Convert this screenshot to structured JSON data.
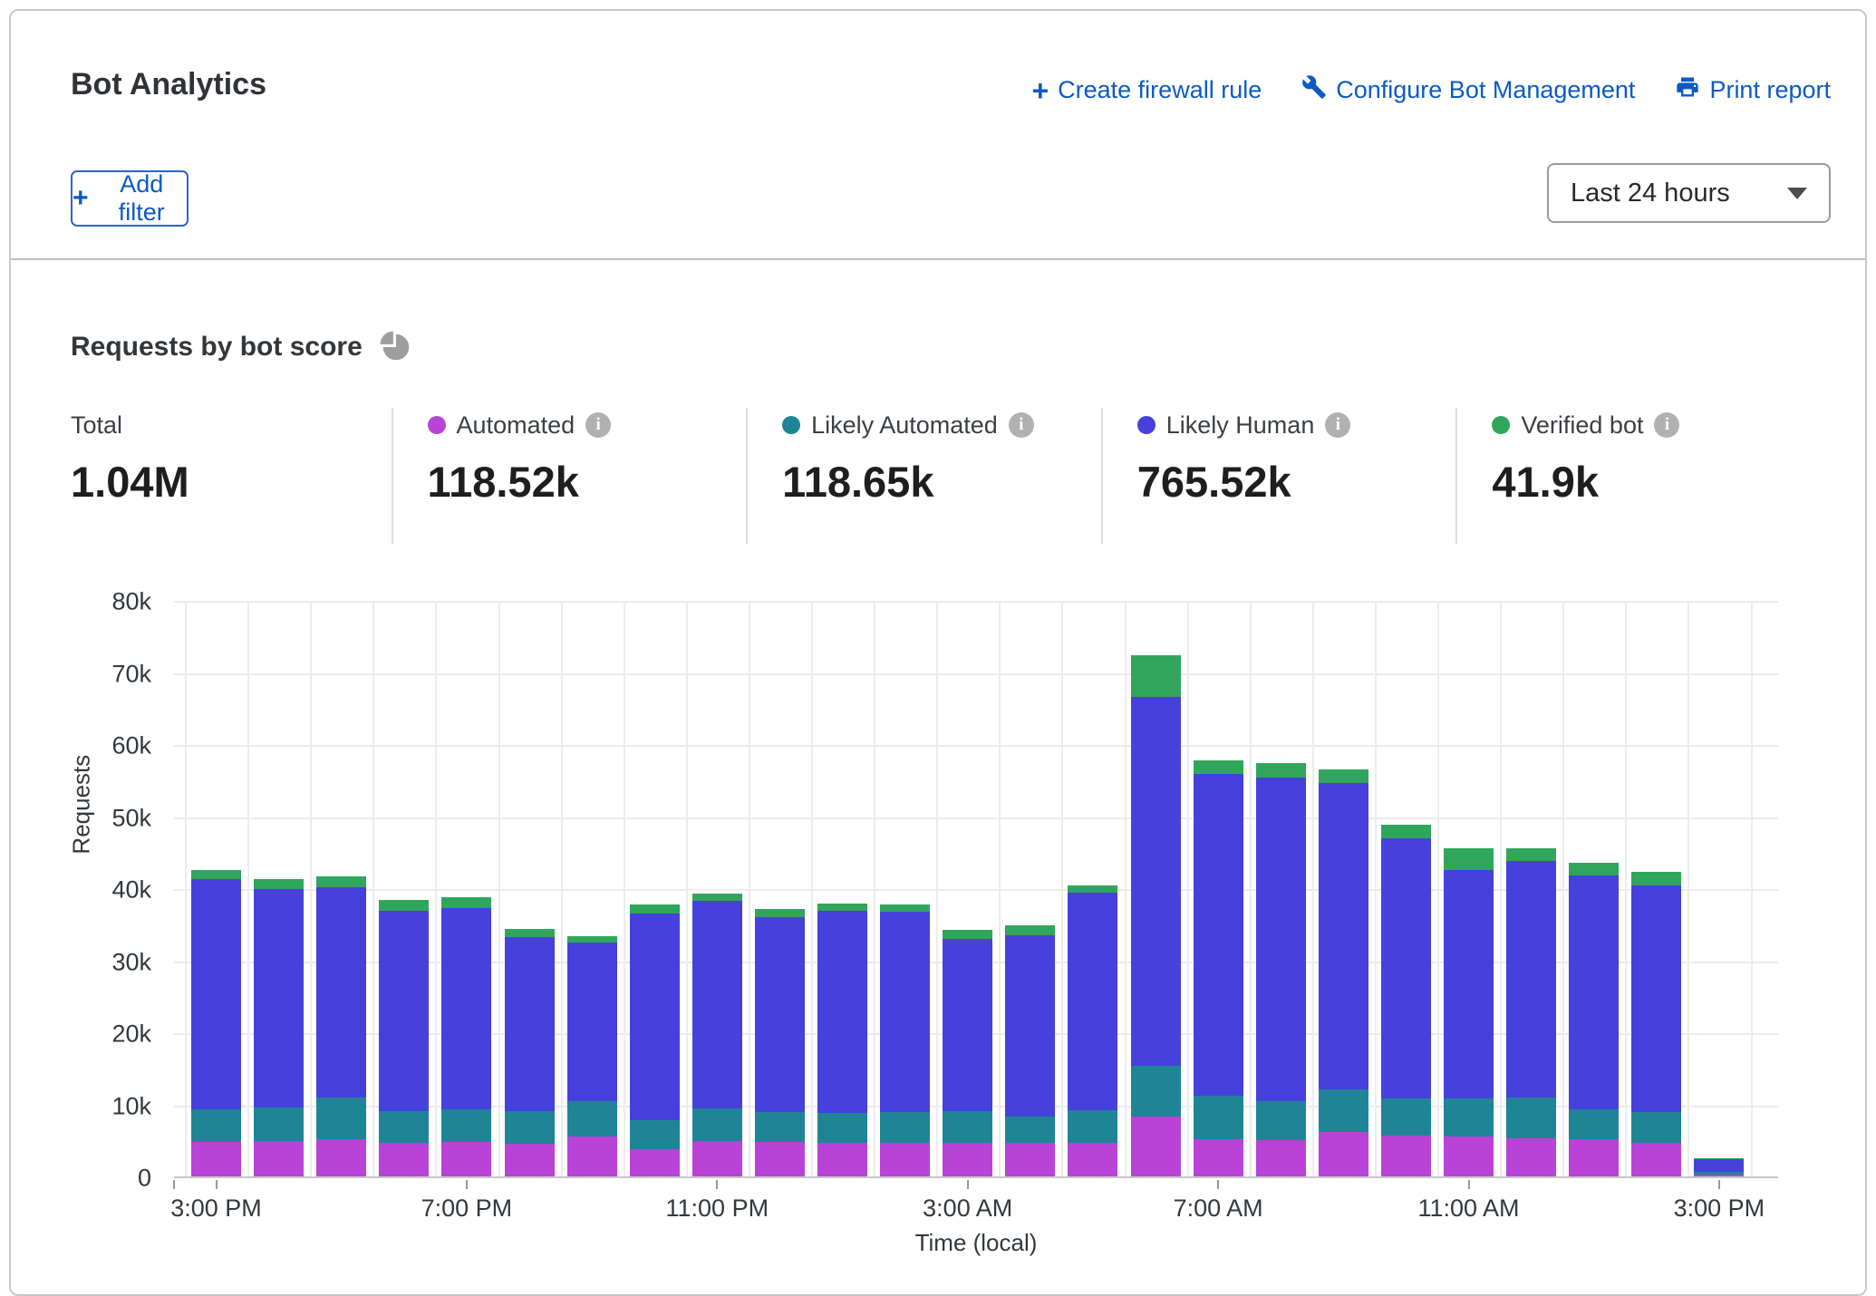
{
  "header": {
    "title": "Bot Analytics",
    "actions": [
      {
        "label": "Create firewall rule",
        "icon": "plus-icon"
      },
      {
        "label": "Configure Bot Management",
        "icon": "wrench-icon"
      },
      {
        "label": "Print report",
        "icon": "printer-icon"
      }
    ],
    "add_filter_label": "Add filter",
    "time_range_value": "Last 24 hours"
  },
  "section": {
    "title": "Requests by bot score"
  },
  "stats": {
    "total": {
      "label": "Total",
      "value": "1.04M"
    },
    "legend": [
      {
        "label": "Automated",
        "value": "118.52k",
        "color": "#b843d6"
      },
      {
        "label": "Likely Automated",
        "value": "118.65k",
        "color": "#1f8496"
      },
      {
        "label": "Likely Human",
        "value": "765.52k",
        "color": "#4640dc"
      },
      {
        "label": "Verified bot",
        "value": "41.9k",
        "color": "#2fa65c"
      }
    ]
  },
  "chart_data": {
    "type": "bar",
    "stacked": true,
    "title": "Requests by bot score",
    "xlabel": "Time (local)",
    "ylabel": "Requests",
    "ylim": [
      0,
      80000
    ],
    "grid": true,
    "y_tick_labels": [
      "0",
      "10k",
      "20k",
      "30k",
      "40k",
      "50k",
      "60k",
      "70k",
      "80k"
    ],
    "x_tick_labels": [
      "3:00 PM",
      "7:00 PM",
      "11:00 PM",
      "3:00 AM",
      "7:00 AM",
      "11:00 AM",
      "3:00 PM"
    ],
    "x_tick_every": 4,
    "categories": [
      "3:00 PM",
      "4:00 PM",
      "5:00 PM",
      "6:00 PM",
      "7:00 PM",
      "8:00 PM",
      "9:00 PM",
      "10:00 PM",
      "11:00 PM",
      "12:00 AM",
      "1:00 AM",
      "2:00 AM",
      "3:00 AM",
      "4:00 AM",
      "5:00 AM",
      "6:00 AM",
      "7:00 AM",
      "8:00 AM",
      "9:00 AM",
      "10:00 AM",
      "11:00 AM",
      "12:00 PM",
      "1:00 PM",
      "2:00 PM",
      "3:00 PM"
    ],
    "series": [
      {
        "name": "Automated",
        "color": "#b843d6",
        "values": [
          4800,
          4900,
          5200,
          4600,
          4800,
          4500,
          5500,
          3800,
          4900,
          4800,
          4600,
          4700,
          4600,
          4600,
          4700,
          8300,
          5100,
          5000,
          6200,
          5600,
          5500,
          5300,
          5200,
          4600,
          300
        ]
      },
      {
        "name": "Likely Automated",
        "color": "#1f8496",
        "values": [
          4500,
          4600,
          5800,
          4400,
          4500,
          4500,
          5000,
          4000,
          4500,
          4100,
          4200,
          4200,
          4400,
          3700,
          4500,
          7100,
          6100,
          5500,
          5900,
          5200,
          5300,
          5600,
          4100,
          4300,
          300
        ]
      },
      {
        "name": "Likely Human",
        "color": "#4640dc",
        "values": [
          31900,
          30400,
          29100,
          27900,
          27900,
          24200,
          21900,
          28700,
          28800,
          27100,
          28000,
          27800,
          23900,
          25200,
          30200,
          51100,
          44700,
          44900,
          42500,
          36100,
          31700,
          32900,
          32500,
          31500,
          1800
        ]
      },
      {
        "name": "Verified bot",
        "color": "#2fa65c",
        "values": [
          1300,
          1300,
          1500,
          1500,
          1500,
          1100,
          1000,
          1200,
          1000,
          1100,
          1100,
          1100,
          1300,
          1300,
          1000,
          5800,
          1900,
          1900,
          1900,
          1900,
          3000,
          1800,
          1700,
          1900,
          100
        ]
      }
    ]
  }
}
